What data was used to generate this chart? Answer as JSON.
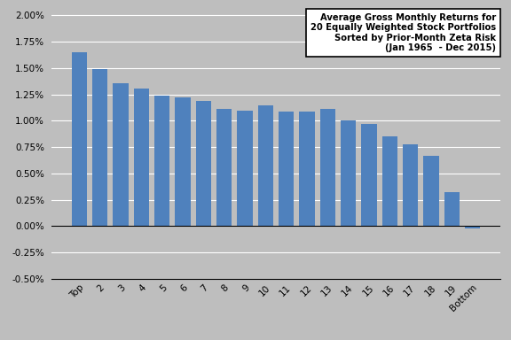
{
  "categories": [
    "Top",
    "2",
    "3",
    "4",
    "5",
    "6",
    "7",
    "8",
    "9",
    "10",
    "11",
    "12",
    "13",
    "14",
    "15",
    "16",
    "17",
    "18",
    "19",
    "Bottom"
  ],
  "values": [
    0.0165,
    0.01495,
    0.01355,
    0.0131,
    0.0124,
    0.0122,
    0.0119,
    0.01115,
    0.01095,
    0.0115,
    0.0109,
    0.0109,
    0.0111,
    0.01005,
    0.0097,
    0.00855,
    0.00775,
    0.00665,
    0.0032,
    -0.00025
  ],
  "bar_color": "#4F81BD",
  "background_color": "#BEBEBE",
  "plot_background_color": "#BEBEBE",
  "ylim": [
    -0.005,
    0.0205
  ],
  "yticks": [
    -0.005,
    -0.0025,
    0.0,
    0.0025,
    0.005,
    0.0075,
    0.01,
    0.0125,
    0.015,
    0.0175,
    0.02
  ],
  "legend_text_line1": "Average Gross Monthly Returns for",
  "legend_text_line2": "20 Equally Weighted Stock Portfolios",
  "legend_text_line3": "Sorted by Prior-Month Zeta Risk",
  "legend_text_line4": "(Jan 1965  - Dec 2015)"
}
